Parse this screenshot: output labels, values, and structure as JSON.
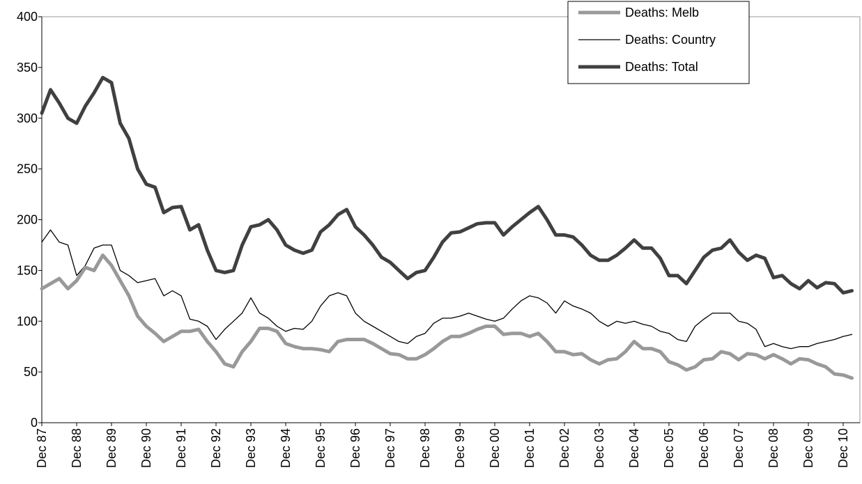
{
  "chart_data": {
    "type": "line",
    "categories": [
      "Dec 87",
      null,
      null,
      null,
      "Dec 88",
      null,
      null,
      null,
      "Dec 89",
      null,
      null,
      null,
      "Dec 90",
      null,
      null,
      null,
      "Dec 91",
      null,
      null,
      null,
      "Dec 92",
      null,
      null,
      null,
      "Dec 93",
      null,
      null,
      null,
      "Dec 94",
      null,
      null,
      null,
      "Dec 95",
      null,
      null,
      null,
      "Dec 96",
      null,
      null,
      null,
      "Dec 97",
      null,
      null,
      null,
      "Dec 98",
      null,
      null,
      null,
      "Dec 99",
      null,
      null,
      null,
      "Dec 00",
      null,
      null,
      null,
      "Dec 01",
      null,
      null,
      null,
      "Dec 02",
      null,
      null,
      null,
      "Dec 03",
      null,
      null,
      null,
      "Dec 04",
      null,
      null,
      null,
      "Dec 05",
      null,
      null,
      null,
      "Dec 06",
      null,
      null,
      null,
      "Dec 07",
      null,
      null,
      null,
      "Dec 08",
      null,
      null,
      null,
      "Dec 09",
      null,
      null,
      null,
      "Dec 10",
      null
    ],
    "series": [
      {
        "name": "Deaths: Melb",
        "color": "#999999",
        "width": 5,
        "values": [
          132,
          137,
          142,
          132,
          140,
          153,
          150,
          165,
          155,
          140,
          125,
          105,
          95,
          88,
          80,
          85,
          90,
          90,
          92,
          80,
          70,
          58,
          55,
          70,
          80,
          93,
          93,
          90,
          78,
          75,
          73,
          73,
          72,
          70,
          80,
          82,
          82,
          82,
          78,
          73,
          68,
          67,
          63,
          63,
          67,
          73,
          80,
          85,
          85,
          88,
          92,
          95,
          95,
          87,
          88,
          88,
          85,
          88,
          80,
          70,
          70,
          67,
          68,
          62,
          58,
          62,
          63,
          70,
          80,
          73,
          73,
          70,
          60,
          57,
          52,
          55,
          62,
          63,
          70,
          68,
          62,
          68,
          67,
          63,
          67,
          63,
          58,
          63,
          62,
          58,
          55,
          48,
          47,
          44
        ]
      },
      {
        "name": "Deaths: Country",
        "color": "#000000",
        "width": 1.3,
        "values": [
          178,
          190,
          178,
          175,
          145,
          155,
          172,
          175,
          175,
          150,
          145,
          138,
          140,
          142,
          125,
          130,
          125,
          102,
          100,
          95,
          82,
          92,
          100,
          108,
          123,
          108,
          103,
          95,
          90,
          93,
          92,
          100,
          115,
          125,
          128,
          125,
          108,
          100,
          95,
          90,
          85,
          80,
          78,
          85,
          88,
          98,
          103,
          103,
          105,
          108,
          105,
          102,
          100,
          103,
          112,
          120,
          125,
          123,
          118,
          108,
          120,
          115,
          112,
          108,
          100,
          95,
          100,
          98,
          100,
          97,
          95,
          90,
          88,
          82,
          80,
          95,
          102,
          108,
          108,
          108,
          100,
          98,
          92,
          75,
          78,
          75,
          73,
          75,
          75,
          78,
          80,
          82,
          85,
          87
        ]
      },
      {
        "name": "Deaths: Total",
        "color": "#404040",
        "width": 5,
        "values": [
          305,
          328,
          315,
          300,
          295,
          312,
          325,
          340,
          335,
          295,
          280,
          250,
          235,
          232,
          207,
          212,
          213,
          190,
          195,
          170,
          150,
          148,
          150,
          175,
          193,
          195,
          200,
          190,
          175,
          170,
          167,
          170,
          188,
          195,
          205,
          210,
          193,
          185,
          175,
          163,
          158,
          150,
          142,
          148,
          150,
          163,
          178,
          187,
          188,
          192,
          196,
          197,
          197,
          185,
          193,
          200,
          207,
          213,
          200,
          185,
          185,
          183,
          175,
          165,
          160,
          160,
          165,
          172,
          180,
          172,
          172,
          162,
          145,
          145,
          137,
          150,
          163,
          170,
          172,
          180,
          168,
          160,
          165,
          162,
          143,
          145,
          137,
          132,
          140,
          133,
          138,
          137,
          128,
          130
        ]
      }
    ],
    "ylim": [
      0,
      400
    ],
    "yticks": [
      0,
      50,
      100,
      150,
      200,
      250,
      300,
      350,
      400
    ],
    "grid": false,
    "legend": "upper right"
  }
}
